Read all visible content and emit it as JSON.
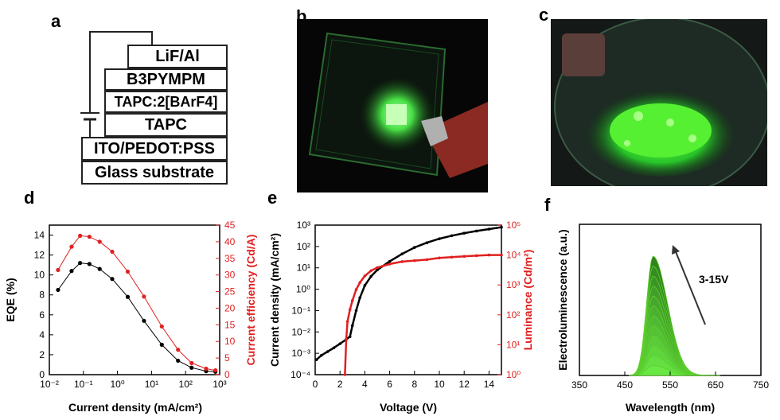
{
  "panels": {
    "a": "a",
    "b": "b",
    "c": "c",
    "d": "d",
    "e": "e",
    "f": "f"
  },
  "device_stack": [
    "LiF/Al",
    "B3PYMPM",
    "TAPC:2[BArF4]",
    "TAPC",
    "ITO/PEDOT:PSS",
    "Glass substrate"
  ],
  "chart_data": [
    {
      "panel": "d",
      "type": "scatter",
      "xlabel": "Current density (mA/cm²)",
      "ylabel": "EQE (%)",
      "ylabel_right": "Current efficiency (Cd/A)",
      "x_scale": "log",
      "xlim": [
        0.01,
        1000
      ],
      "ylim": [
        0,
        15
      ],
      "ylim_right": [
        0,
        45
      ],
      "x_ticks": [
        "10⁻²",
        "10⁻¹",
        "10⁰",
        "10¹",
        "10²",
        "10³"
      ],
      "y_ticks": [
        "0",
        "2",
        "4",
        "6",
        "8",
        "10",
        "12",
        "14"
      ],
      "y_ticks_right": [
        "0",
        "5",
        "10",
        "15",
        "20",
        "25",
        "30",
        "35",
        "40",
        "45"
      ],
      "series": [
        {
          "color": "#000000",
          "axis": "left",
          "x": [
            0.018,
            0.045,
            0.08,
            0.15,
            0.3,
            0.7,
            2,
            6,
            20,
            60,
            150,
            400,
            750
          ],
          "y": [
            8.5,
            10.4,
            11.2,
            11.1,
            10.6,
            9.6,
            7.8,
            5.4,
            3.0,
            1.4,
            0.7,
            0.35,
            0.3
          ]
        },
        {
          "color": "#e02020",
          "axis": "right",
          "x": [
            0.018,
            0.045,
            0.08,
            0.15,
            0.3,
            0.7,
            2,
            6,
            20,
            60,
            150,
            400,
            750
          ],
          "y": [
            31.5,
            38.5,
            41.8,
            41.5,
            40.0,
            37.0,
            31.0,
            23.5,
            14.5,
            7.5,
            3.5,
            1.8,
            1.3
          ]
        }
      ]
    },
    {
      "panel": "e",
      "type": "line",
      "xlabel": "Voltage (V)",
      "ylabel": "Current density (mA/cm²)",
      "ylabel_right": "Luminance (Cd/m²)",
      "y_scale": "log",
      "xlim": [
        0,
        15
      ],
      "ylim": [
        0.0001,
        1000
      ],
      "ylim_right": [
        1,
        100000
      ],
      "x_ticks": [
        "0",
        "2",
        "4",
        "6",
        "8",
        "10",
        "12",
        "14"
      ],
      "y_ticks": [
        "10⁻⁴",
        "10⁻³",
        "10⁻²",
        "10⁻¹",
        "10⁰",
        "10¹",
        "10²",
        "10³"
      ],
      "y_ticks_right": [
        "10⁰",
        "10¹",
        "10²",
        "10³",
        "10⁴",
        "10⁵"
      ],
      "series": [
        {
          "color": "#000000",
          "axis": "left",
          "x": [
            0.1,
            0.5,
            1.0,
            1.5,
            2.0,
            2.5,
            2.8,
            3.0,
            3.3,
            3.6,
            4.0,
            4.5,
            5,
            6,
            7,
            8,
            9,
            10,
            11,
            12,
            13,
            14,
            15
          ],
          "y": [
            0.0005,
            0.0008,
            0.0012,
            0.0018,
            0.0028,
            0.0045,
            0.006,
            0.02,
            0.1,
            0.4,
            1.5,
            4,
            8,
            20,
            45,
            90,
            150,
            230,
            320,
            420,
            530,
            650,
            800
          ]
        },
        {
          "color": "#e02020",
          "axis": "right",
          "x": [
            2.4,
            2.5,
            2.6,
            2.8,
            3.0,
            3.3,
            3.6,
            4.0,
            4.5,
            5,
            6,
            7,
            8,
            9,
            10,
            11,
            12,
            13,
            14,
            15
          ],
          "y": [
            1,
            15,
            60,
            150,
            300,
            700,
            1200,
            2000,
            3000,
            3800,
            5000,
            6000,
            6500,
            7000,
            8000,
            8500,
            9000,
            9500,
            10000,
            10000
          ]
        }
      ]
    },
    {
      "panel": "f",
      "type": "area",
      "xlabel": "Wavelength (nm)",
      "ylabel": "Electroluminescence (a.u.)",
      "xlim": [
        350,
        750
      ],
      "x_ticks": [
        "350",
        "450",
        "550",
        "650",
        "750"
      ],
      "annotation": "3-15V",
      "color": "#5dcf2d",
      "peak_nm": 512,
      "n_curves": 12
    }
  ]
}
